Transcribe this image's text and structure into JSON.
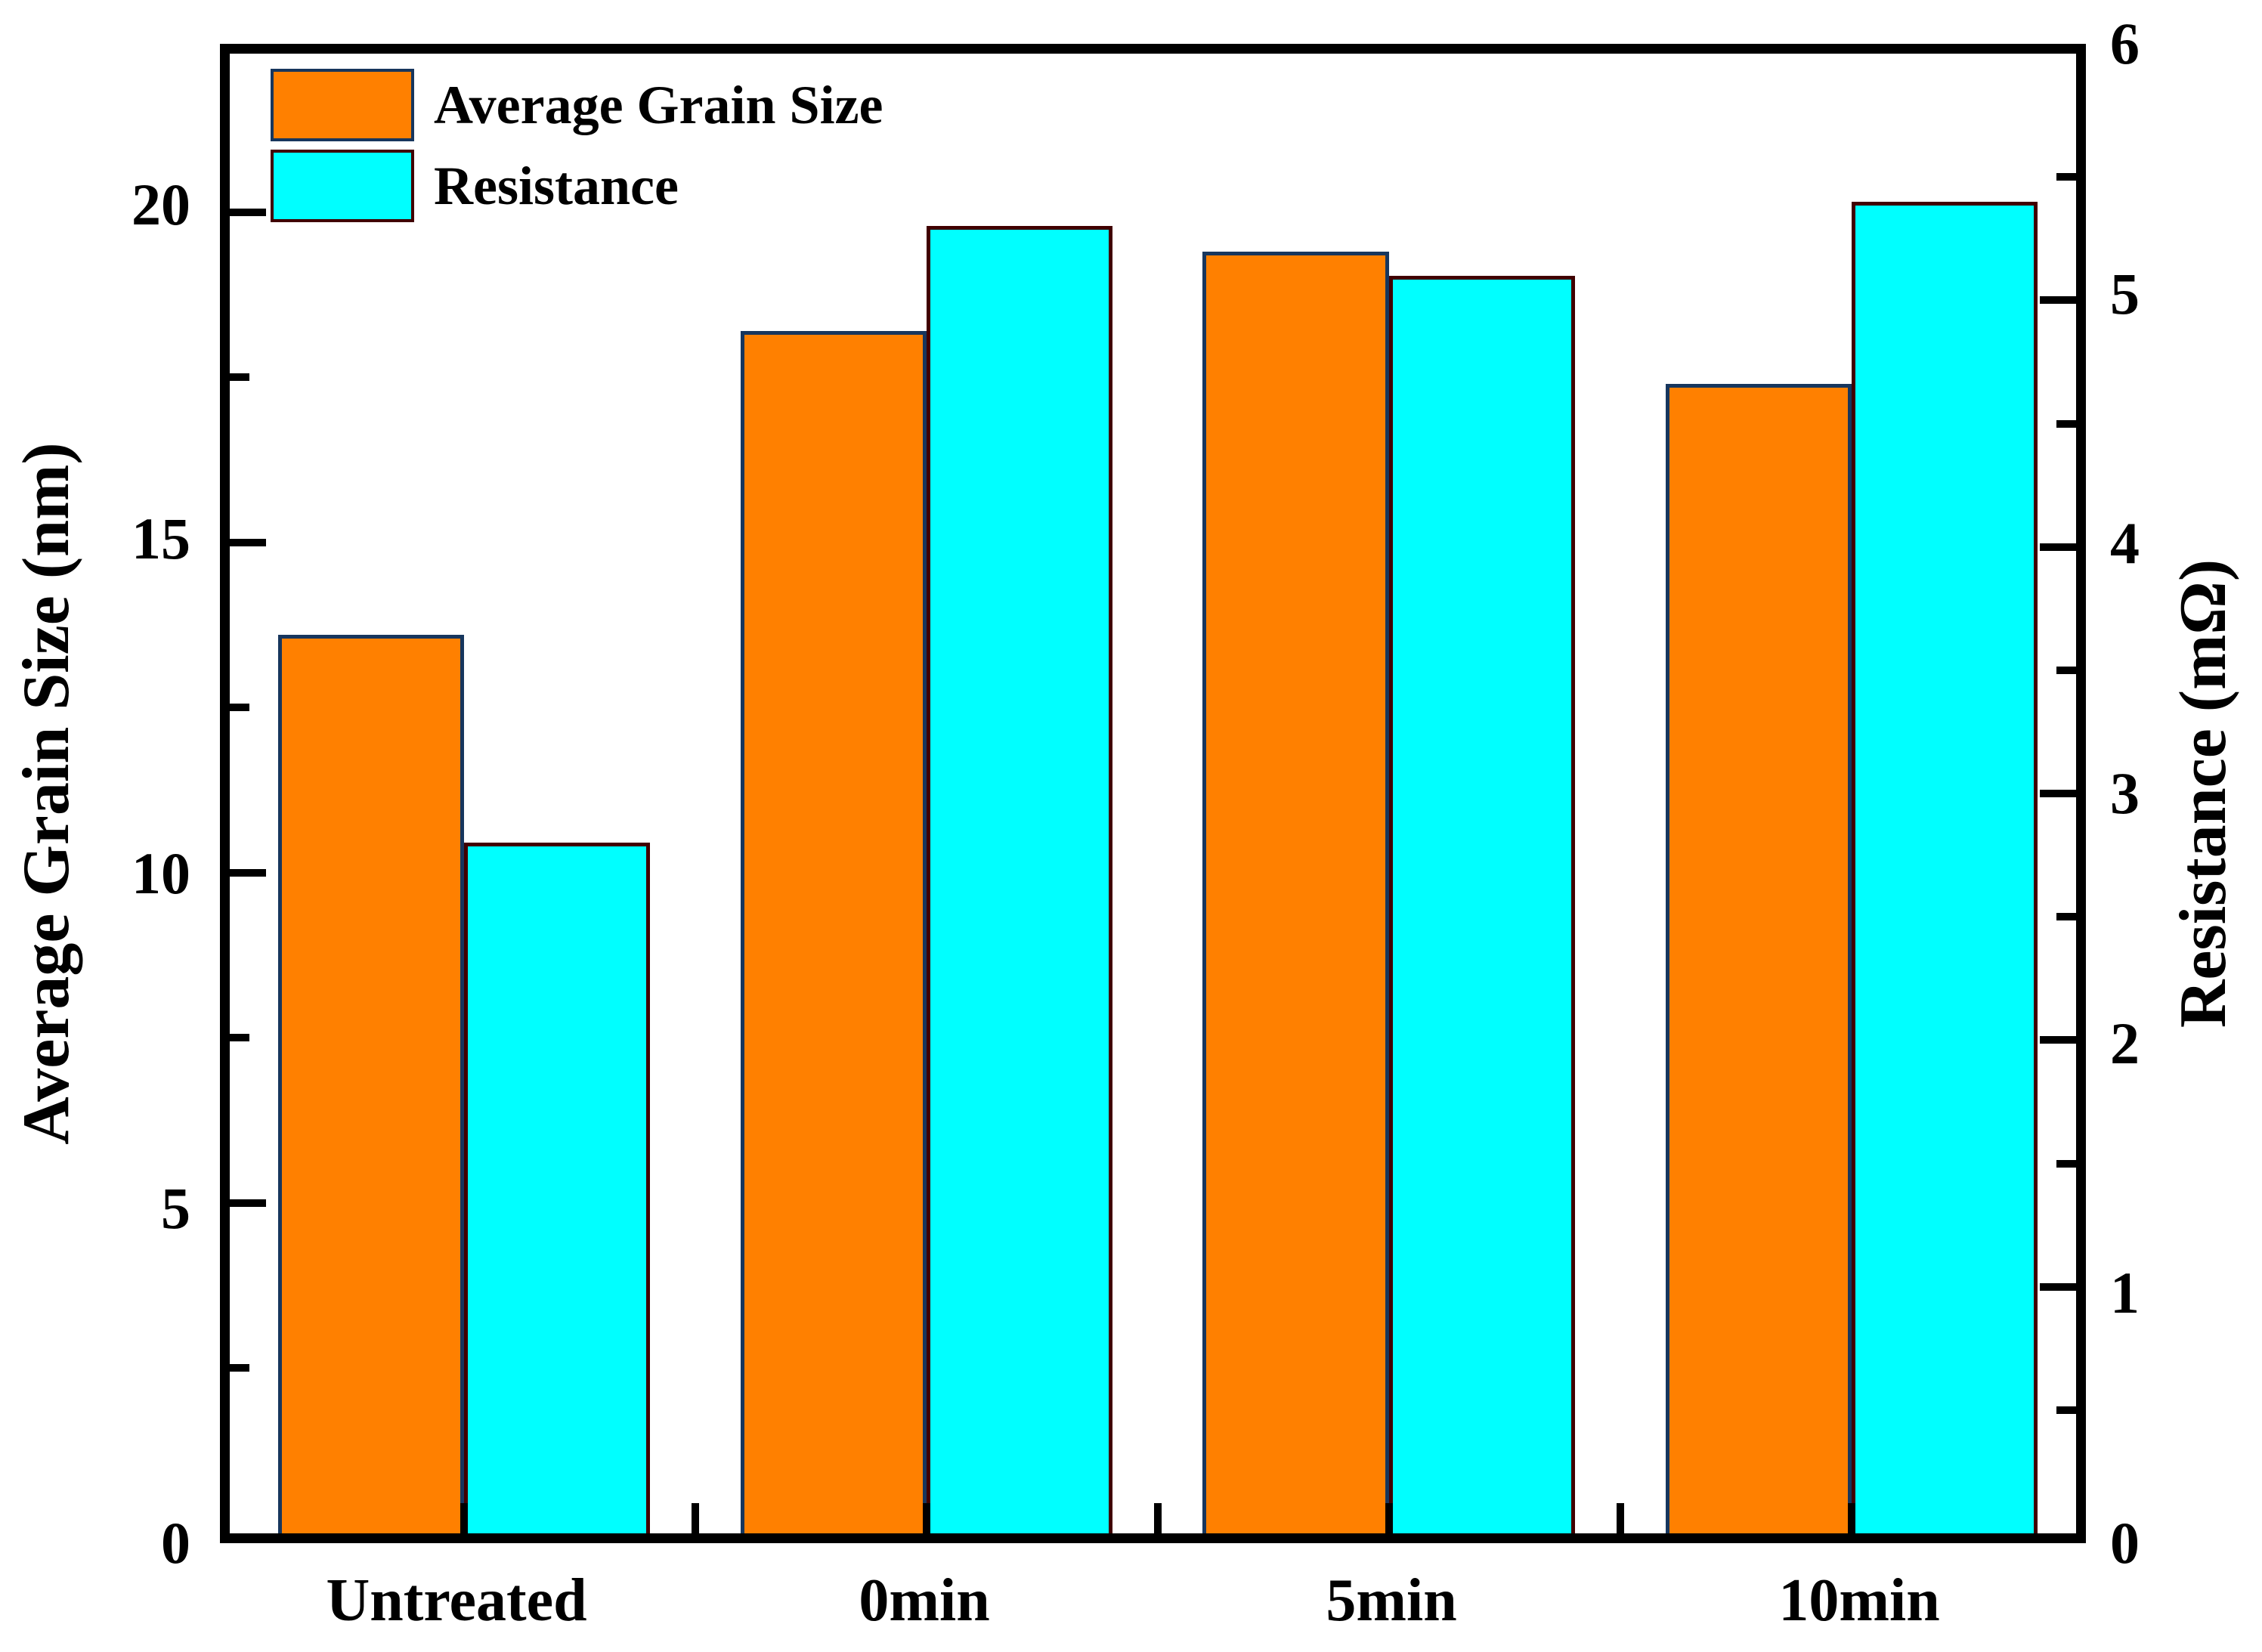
{
  "chart_data": {
    "type": "bar",
    "title": "",
    "categories": [
      "Untreated",
      "0min",
      "5min",
      "10min"
    ],
    "series": [
      {
        "name": "Average Grain Size",
        "axis": "left",
        "unit": "nm",
        "color": "#FF8000",
        "border_color": "#17365D",
        "values": [
          13.6,
          18.2,
          19.4,
          17.4
        ]
      },
      {
        "name": "Resistance",
        "axis": "right",
        "unit": "mΩ",
        "color": "#00FFFF",
        "border_color": "#400000",
        "values": [
          2.8,
          5.3,
          5.1,
          5.4
        ]
      }
    ],
    "axes": {
      "left": {
        "label": "Average Grain Size (nm)",
        "ticks": [
          0,
          5,
          10,
          15,
          20
        ],
        "minor_step": 2.5,
        "range": [
          0,
          22.4
        ]
      },
      "right": {
        "label": "Resistance (mΩ)",
        "ticks": [
          0,
          1,
          2,
          3,
          4,
          5,
          6
        ],
        "minor_step": 0.5,
        "range": [
          0,
          6
        ]
      },
      "x": {
        "labels": [
          "Untreated",
          "0min",
          "5min",
          "10min"
        ]
      }
    },
    "legend": {
      "position": "top-left",
      "items": [
        {
          "label": "Average Grain Size",
          "color": "#FF8000",
          "border_color": "#17365D"
        },
        {
          "label": "Resistance",
          "color": "#00FFFF",
          "border_color": "#400000"
        }
      ]
    },
    "grid": false,
    "frame_color": "#000000",
    "background": "#FFFFFF"
  }
}
